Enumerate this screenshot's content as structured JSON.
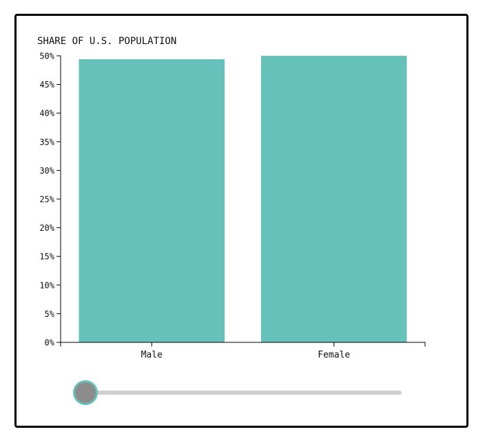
{
  "chart_data": {
    "type": "bar",
    "title": "SHARE OF U.S. POPULATION",
    "categories": [
      "Male",
      "Female"
    ],
    "values": [
      49.4,
      50.6
    ],
    "ylim": [
      0,
      50
    ],
    "yticks": [
      0,
      5,
      10,
      15,
      20,
      25,
      30,
      35,
      40,
      45,
      50
    ],
    "ytick_suffix": "%",
    "xlabel": "",
    "ylabel": "",
    "grid": false,
    "bar_color": "#66c1ba"
  },
  "slider": {
    "value": 0,
    "thumb_color": "#8c8c8c",
    "thumb_border_color": "#66c1ba",
    "track_color": "#cfcfcf"
  }
}
